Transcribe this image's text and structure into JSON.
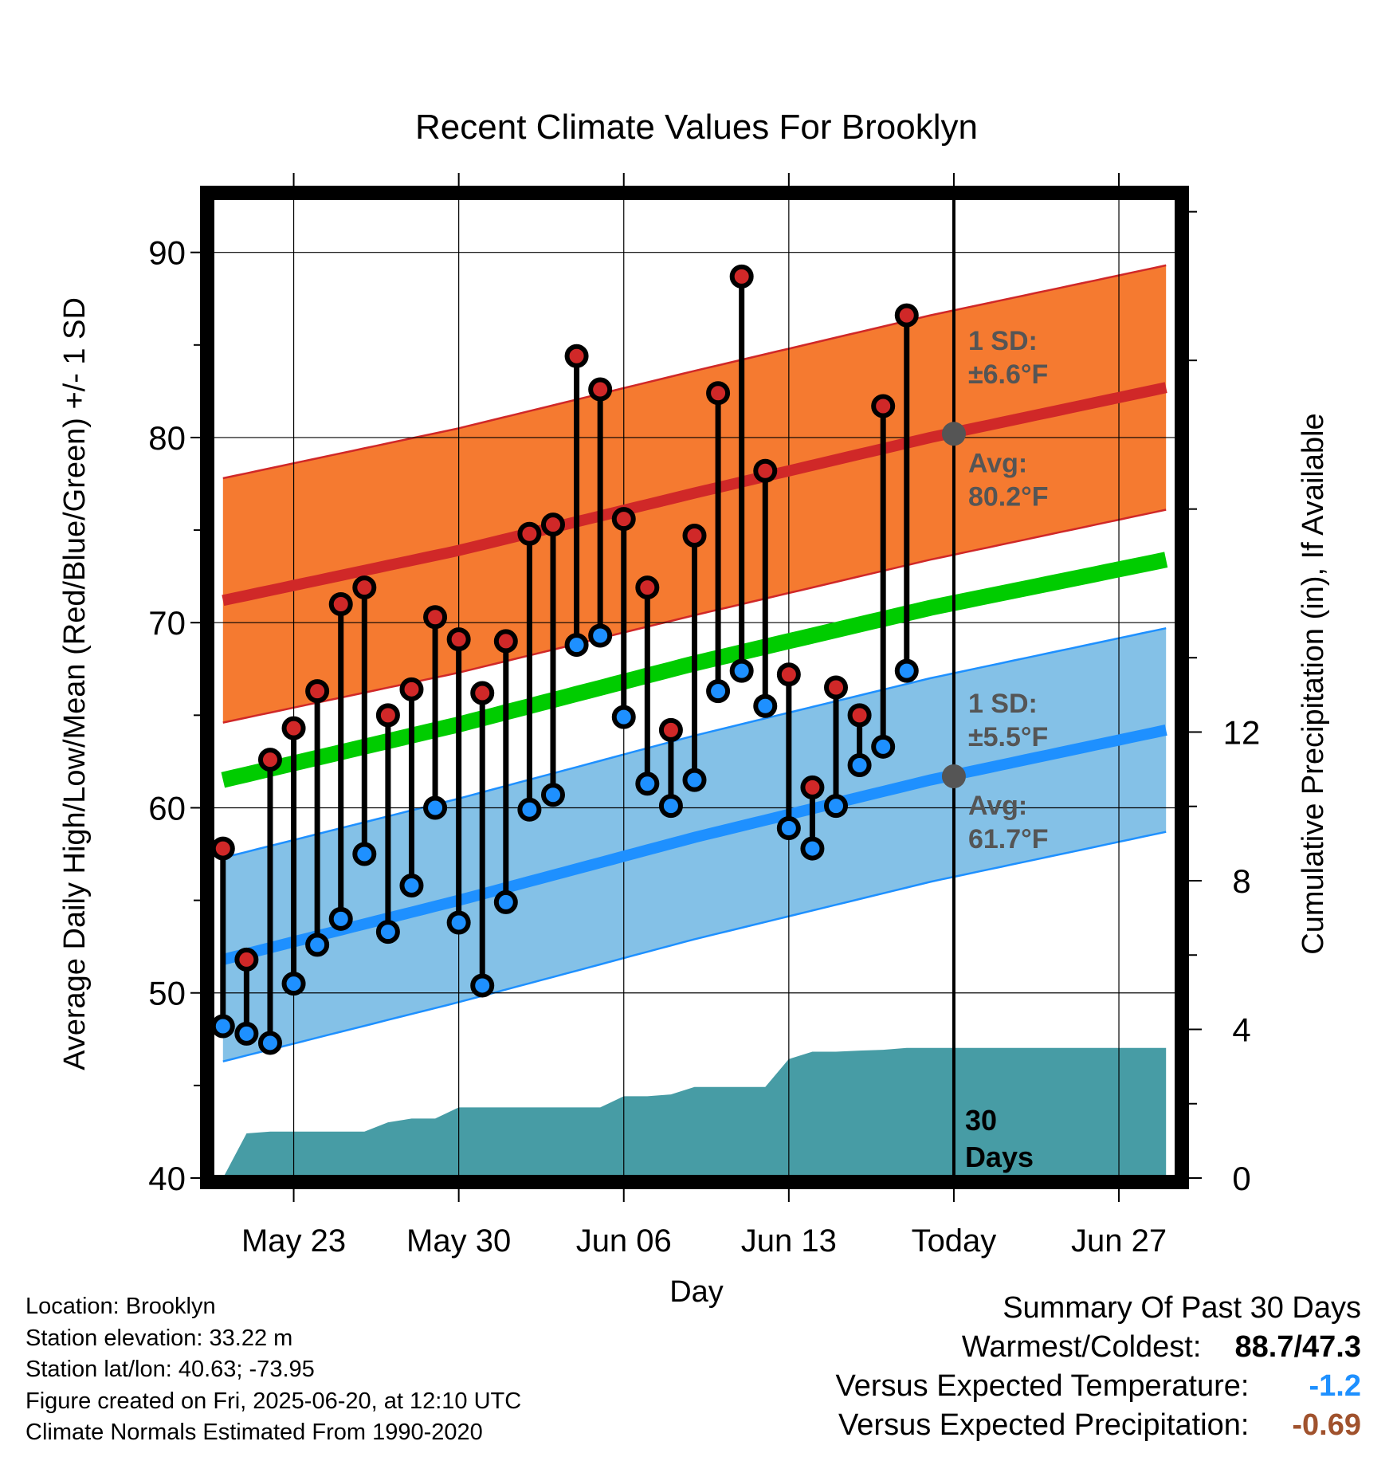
{
  "chart_data": {
    "type": "line",
    "title": "Recent Climate Values For Brooklyn",
    "xlabel": "Day",
    "ylabel": "Average Daily High/Low/Mean (Red/Blue/Green) +/- 1 SD",
    "y2label": "Cumulative Precipitation (in), If Available",
    "ylim": [
      40,
      93
    ],
    "y2lim": [
      0,
      26.4
    ],
    "yticks": [
      40,
      50,
      60,
      70,
      80,
      90
    ],
    "y2ticks": [
      0,
      4,
      8,
      12
    ],
    "xticks": [
      {
        "day": 3,
        "label": "May 23"
      },
      {
        "day": 10,
        "label": "May 30"
      },
      {
        "day": 17,
        "label": "Jun 06"
      },
      {
        "day": 24,
        "label": "Jun 13"
      },
      {
        "day": 31,
        "label": "Today"
      },
      {
        "day": 38,
        "label": "Jun 27"
      }
    ],
    "xlim": [
      -0.5,
      40.5
    ],
    "today_index": 31,
    "days_label": "30 Days",
    "observed": {
      "highs": [
        57.8,
        51.8,
        62.6,
        64.3,
        66.3,
        71.0,
        71.9,
        65.0,
        66.4,
        70.3,
        69.1,
        66.2,
        69.0,
        74.8,
        75.3,
        84.4,
        82.6,
        75.6,
        71.9,
        64.2,
        74.7,
        82.4,
        88.7,
        78.2,
        67.2,
        61.1,
        66.5,
        65.0,
        81.7,
        86.6
      ],
      "lows": [
        48.2,
        47.8,
        47.3,
        50.5,
        52.6,
        54.0,
        57.5,
        53.3,
        55.8,
        60.0,
        53.8,
        50.4,
        54.9,
        59.9,
        60.7,
        68.8,
        69.3,
        64.9,
        61.3,
        60.1,
        61.5,
        66.3,
        67.4,
        65.5,
        58.9,
        57.8,
        60.1,
        62.3,
        63.3,
        67.4
      ]
    },
    "normals": {
      "days": [
        0,
        10,
        20,
        30,
        40
      ],
      "high_avg": [
        71.2,
        73.9,
        77.0,
        80.0,
        82.7
      ],
      "low_avg": [
        51.8,
        55.0,
        58.4,
        61.5,
        64.2
      ],
      "mean_avg": [
        61.5,
        64.5,
        67.8,
        70.8,
        73.4
      ],
      "high_sd": 6.6,
      "low_sd": 5.5
    },
    "precip_cumulative": [
      0.0,
      1.2,
      1.25,
      1.25,
      1.25,
      1.25,
      1.25,
      1.5,
      1.6,
      1.6,
      1.9,
      1.9,
      1.9,
      1.9,
      1.9,
      1.9,
      1.9,
      2.2,
      2.2,
      2.25,
      2.45,
      2.45,
      2.45,
      2.45,
      3.2,
      3.4,
      3.4,
      3.43,
      3.45,
      3.5,
      3.5,
      3.5,
      3.5,
      3.5,
      3.5,
      3.5,
      3.5,
      3.5,
      3.5,
      3.5,
      3.5
    ],
    "annotations": {
      "high_sd_label": "1 SD:",
      "high_sd_value": "±6.6°F",
      "high_avg_label": "Avg:",
      "high_avg_value": "80.2°F",
      "low_sd_label": "1 SD:",
      "low_sd_value": "±5.5°F",
      "low_avg_label": "Avg:",
      "low_avg_value": "61.7°F",
      "today_high_avg": 80.2,
      "today_low_avg": 61.7
    }
  },
  "colors": {
    "high_band": "#F57A30",
    "high_line": "#D02828",
    "low_band": "#84C1E7",
    "low_line": "#1E90FF",
    "mean_line": "#00CC00",
    "precip": "#479CA5",
    "high_marker": "#D02828",
    "low_marker": "#1E90FF",
    "annotation_text": "#555555",
    "temp_below": "#1E90FF",
    "precip_below": "#A0522D"
  },
  "footer": {
    "location": "Location: Brooklyn",
    "elevation": "Station elevation: 33.22 m",
    "latlon": "Station lat/lon: 40.63; -73.95",
    "created": "Figure created on Fri, 2025-06-20, at 12:10 UTC",
    "normals": "Climate Normals Estimated From 1990-2020"
  },
  "summary": {
    "heading": "Summary Of Past 30 Days",
    "warmest_coldest_label": "Warmest/Coldest:",
    "warmest_coldest_value": "88.7/47.3",
    "temp_label": "Versus Expected Temperature:",
    "temp_value": "-1.2",
    "precip_label": "Versus Expected Precipitation:",
    "precip_value": "-0.69"
  }
}
